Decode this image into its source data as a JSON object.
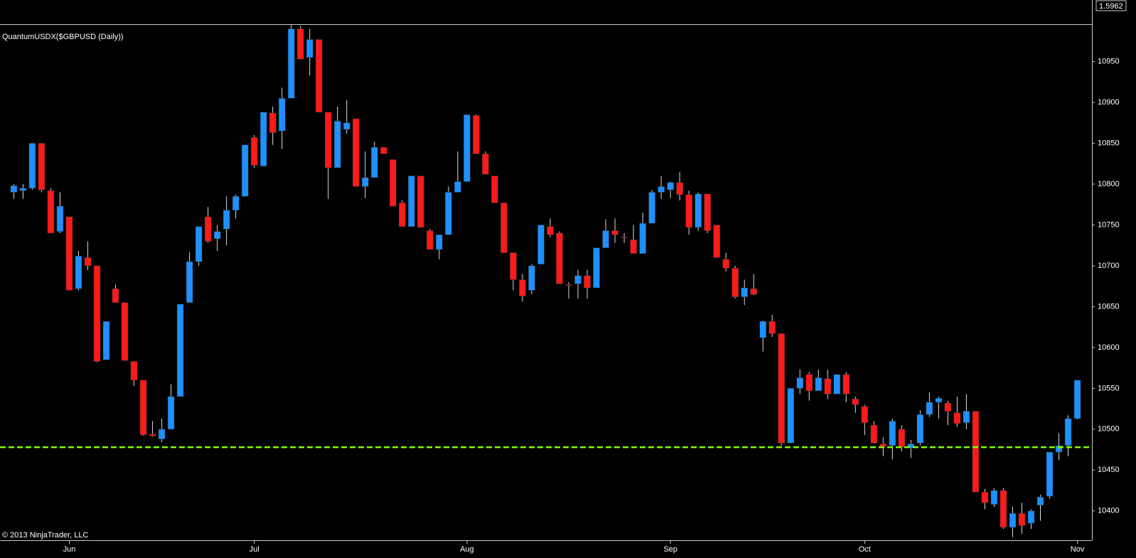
{
  "chart_data": {
    "type": "candlestick",
    "title": "QuantumUSDX($GBPUSD (Daily))",
    "copyright": "© 2013 NinjaTrader, LLC",
    "price_label": "1.5962",
    "up_color": "#1e90ff",
    "down_color": "#ff1a1a",
    "open": [
      10790,
      10792,
      10795,
      10850,
      10792,
      10742,
      10760,
      10672,
      10710,
      10700,
      10585,
      10672,
      10655,
      10583,
      10560,
      10494,
      10488,
      10500,
      10540,
      10655,
      10705,
      10760,
      10733,
      10745,
      10768,
      10785,
      10857,
      10822,
      10887,
      10865,
      10905,
      10990,
      10955,
      10977,
      10888,
      10820,
      10867,
      10880,
      10797,
      10808,
      10845,
      10830,
      10777,
      10748,
      10810,
      10743,
      10720,
      10738,
      10790,
      10803,
      10884,
      10837,
      10810,
      10777,
      10716,
      10683,
      10670,
      10702,
      10748,
      10740,
      10677,
      10678,
      10688,
      10673,
      10722,
      10743,
      10735,
      10732,
      10715,
      10752,
      10790,
      10793,
      10802,
      10787,
      10747,
      10788,
      10750,
      10708,
      10697,
      10662,
      10672,
      10612,
      10632,
      10617,
      10483,
      10550,
      10567,
      10547,
      10562,
      10543,
      10567,
      10537,
      10528,
      10505,
      10482,
      10480,
      10500,
      10477,
      10483,
      10518,
      10533,
      10532,
      10520,
      10508,
      10522,
      10423,
      10408,
      10425,
      10380,
      10397,
      10385,
      10407,
      10418,
      10472,
      10480,
      10513
    ],
    "high": [
      10800,
      10800,
      10850,
      10850,
      10795,
      10790,
      10760,
      10718,
      10730,
      10700,
      10632,
      10677,
      10655,
      10583,
      10560,
      10510,
      10513,
      10555,
      10653,
      10717,
      10748,
      10772,
      10750,
      10785,
      10787,
      10848,
      10860,
      10888,
      10895,
      10918,
      10995,
      10994,
      10990,
      10977,
      10888,
      10895,
      10903,
      10880,
      10840,
      10852,
      10845,
      10830,
      10780,
      10810,
      10810,
      10745,
      10738,
      10797,
      10840,
      10885,
      10885,
      10840,
      10810,
      10777,
      10716,
      10690,
      10702,
      10750,
      10758,
      10742,
      10680,
      10695,
      10695,
      10722,
      10757,
      10758,
      10740,
      10750,
      10765,
      10793,
      10810,
      10803,
      10815,
      10792,
      10790,
      10788,
      10750,
      10716,
      10700,
      10683,
      10690,
      10633,
      10640,
      10617,
      10550,
      10573,
      10570,
      10573,
      10573,
      10567,
      10570,
      10540,
      10530,
      10510,
      10490,
      10513,
      10505,
      10487,
      10523,
      10545,
      10540,
      10535,
      10540,
      10543,
      10522,
      10427,
      10428,
      10428,
      10405,
      10410,
      10402,
      10420,
      10472,
      10495,
      10517,
      10560
    ],
    "low": [
      10782,
      10782,
      10793,
      10790,
      10740,
      10740,
      10670,
      10670,
      10695,
      10582,
      10585,
      10655,
      10584,
      10553,
      10492,
      10491,
      10484,
      10500,
      10540,
      10655,
      10700,
      10728,
      10718,
      10725,
      10758,
      10785,
      10820,
      10822,
      10848,
      10843,
      10905,
      10953,
      10933,
      10888,
      10782,
      10820,
      10862,
      10797,
      10783,
      10808,
      10837,
      10773,
      10748,
      10748,
      10747,
      10720,
      10708,
      10738,
      10790,
      10803,
      10837,
      10812,
      10777,
      10716,
      10670,
      10656,
      10665,
      10702,
      10735,
      10678,
      10660,
      10660,
      10660,
      10673,
      10722,
      10728,
      10728,
      10715,
      10715,
      10752,
      10782,
      10783,
      10780,
      10738,
      10743,
      10740,
      10710,
      10693,
      10660,
      10652,
      10664,
      10595,
      10613,
      10480,
      10483,
      10543,
      10535,
      10547,
      10537,
      10543,
      10533,
      10520,
      10493,
      10483,
      10467,
      10463,
      10473,
      10465,
      10480,
      10515,
      10513,
      10505,
      10503,
      10500,
      10423,
      10402,
      10405,
      10378,
      10368,
      10372,
      10378,
      10388,
      10415,
      10462,
      10467,
      10512
    ],
    "close": [
      10798,
      10795,
      10850,
      10793,
      10740,
      10773,
      10670,
      10712,
      10700,
      10583,
      10632,
      10655,
      10584,
      10560,
      10493,
      10492,
      10500,
      10540,
      10653,
      10705,
      10748,
      10730,
      10742,
      10768,
      10785,
      10848,
      10823,
      10888,
      10863,
      10905,
      10990,
      10953,
      10977,
      10888,
      10820,
      10877,
      10875,
      10797,
      10808,
      10845,
      10837,
      10773,
      10748,
      10810,
      10747,
      10720,
      10738,
      10790,
      10803,
      10885,
      10837,
      10812,
      10777,
      10716,
      10683,
      10663,
      10700,
      10750,
      10738,
      10678,
      10676,
      10688,
      10673,
      10722,
      10743,
      10738,
      10734,
      10715,
      10752,
      10790,
      10797,
      10802,
      10787,
      10747,
      10788,
      10743,
      10710,
      10697,
      10662,
      10673,
      10665,
      10632,
      10617,
      10483,
      10550,
      10563,
      10547,
      10563,
      10543,
      10567,
      10543,
      10530,
      10508,
      10483,
      10479,
      10510,
      10478,
      10482,
      10518,
      10533,
      10538,
      10522,
      10507,
      10522,
      10423,
      10410,
      10425,
      10380,
      10397,
      10382,
      10400,
      10417,
      10472,
      10480,
      10513,
      10560
    ],
    "xticks": [
      {
        "value": 6,
        "label": "Jun"
      },
      {
        "value": 26,
        "label": "Jul"
      },
      {
        "value": 49,
        "label": "Aug"
      },
      {
        "value": 71,
        "label": "Sep"
      },
      {
        "value": 92,
        "label": "Oct"
      },
      {
        "value": 115,
        "label": "Nov"
      }
    ],
    "ylim": [
      10365,
      10994
    ],
    "yticks": [
      10400,
      10450,
      10500,
      10550,
      10600,
      10650,
      10700,
      10750,
      10800,
      10850,
      10900,
      10950
    ],
    "hline": {
      "value": 10478,
      "color": "#7fff00",
      "dashed": true
    }
  }
}
